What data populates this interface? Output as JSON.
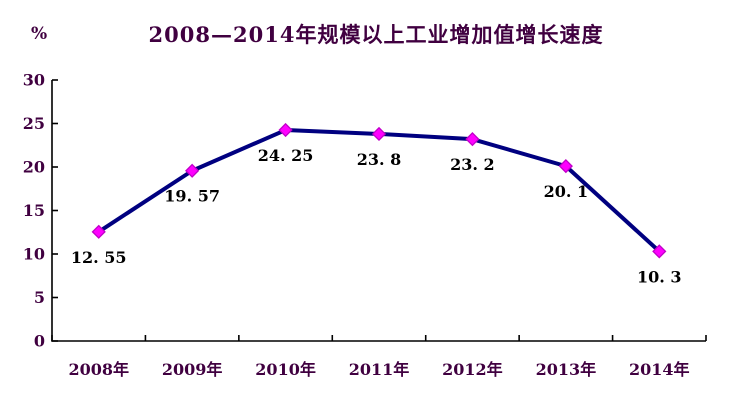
{
  "chart_data": {
    "type": "line",
    "title": "2008—2014年规模以上工业增加值增长速度",
    "ylabel": "%",
    "xlabel": "",
    "categories": [
      "2008年",
      "2009年",
      "2010年",
      "2011年",
      "2012年",
      "2013年",
      "2014年"
    ],
    "series": [
      {
        "name": "规模以上工业增加值增长速度",
        "values": [
          12.55,
          19.57,
          24.25,
          23.8,
          23.2,
          20.1,
          10.3
        ],
        "point_labels": [
          "12. 55",
          "19. 57",
          "24. 25",
          "23. 8",
          "23. 2",
          "20. 1",
          "10. 3"
        ]
      }
    ],
    "ylim": [
      0,
      30
    ],
    "yticks": [
      0,
      5,
      10,
      15,
      20,
      25,
      30
    ],
    "grid": false,
    "legend_position": "none",
    "marker_shape": "diamond",
    "colors": {
      "line": "#000080",
      "marker_fill": "#ff00ff",
      "marker_border": "#c000c8",
      "title_text": "#400040",
      "axis_text": "#400040",
      "data_label_text": "#000000",
      "axis_line": "#000000",
      "background": "#ffffff"
    }
  }
}
